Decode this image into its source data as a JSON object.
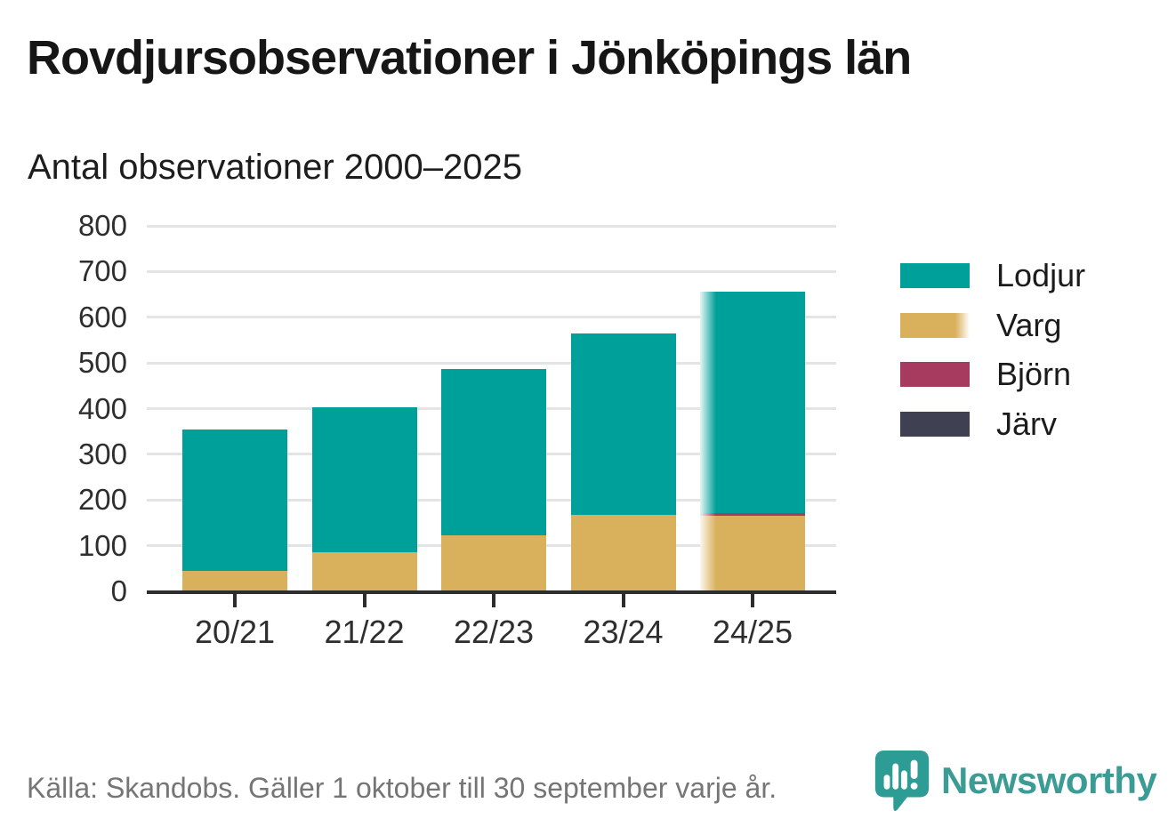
{
  "header": {
    "title": "Rovdjursobservationer i Jönköpings län",
    "subtitle": "Antal observationer 2000–2025"
  },
  "chart_data": {
    "type": "bar",
    "stacked": true,
    "title": "Rovdjursobservationer i Jönköpings län",
    "subtitle": "Antal observationer 2000–2025",
    "categories": [
      "20/21",
      "21/22",
      "22/23",
      "23/24",
      "24/25"
    ],
    "series": [
      {
        "name": "Lodjur",
        "color": "#00a09a",
        "values": [
          310,
          316,
          363,
          398,
          483
        ]
      },
      {
        "name": "Varg",
        "color": "#d9b05c",
        "values": [
          45,
          86,
          123,
          167,
          166
        ],
        "fade": true
      },
      {
        "name": "Björn",
        "color": "#a63a5f",
        "values": [
          0,
          0,
          0,
          0,
          6
        ]
      },
      {
        "name": "Järv",
        "color": "#3f4051",
        "values": [
          0,
          0,
          0,
          0,
          0
        ]
      }
    ],
    "stack_order": [
      "Varg",
      "Björn",
      "Järv",
      "Lodjur"
    ],
    "totals": [
      355,
      402,
      486,
      565,
      655
    ],
    "ylim": [
      0,
      800
    ],
    "yticks": [
      0,
      100,
      200,
      300,
      400,
      500,
      600,
      700,
      800
    ],
    "grid": true,
    "legend_position": "right",
    "fade_last_category": true
  },
  "footer": {
    "source": "Källa: Skandobs. Gäller 1 oktober till 30 september varje år.",
    "brand": "Newsworthy",
    "brand_color": "#3b9c95"
  }
}
